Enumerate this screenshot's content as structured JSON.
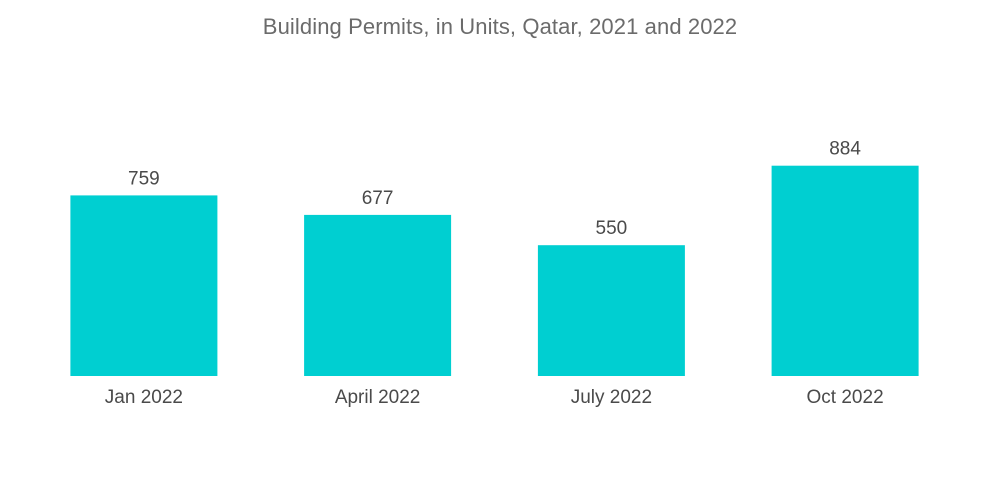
{
  "chart_data": {
    "type": "bar",
    "title": "Building Permits, in Units, Qatar, 2021 and 2022",
    "categories": [
      "Jan 2022",
      "April 2022",
      "July 2022",
      "Oct 2022"
    ],
    "values": [
      759,
      677,
      550,
      884
    ],
    "data_labels": [
      "759",
      "677",
      "550",
      "884"
    ],
    "xlabel": "",
    "ylabel": "",
    "ylim": [
      0,
      950
    ],
    "grid": false,
    "legend": "none",
    "colors": {
      "bar": "#00cfd1",
      "text": "#4a4a4a",
      "title": "#6b6b6b"
    }
  }
}
